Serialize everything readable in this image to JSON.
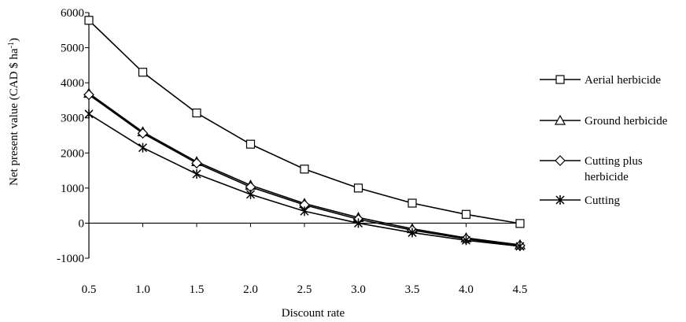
{
  "chart_data": {
    "type": "line",
    "title": "",
    "xlabel": "Discount rate",
    "ylabel": "Net present value (CAD $ ha",
    "ylabel_superscript": "-1",
    "ylabel_suffix": ")",
    "x": [
      "0.5",
      "1.0",
      "1.5",
      "2.0",
      "2.5",
      "3.0",
      "3.5",
      "4.0",
      "4.5"
    ],
    "x_values": [
      0.5,
      1.0,
      1.5,
      2.0,
      2.5,
      3.0,
      3.5,
      4.0,
      4.5
    ],
    "ylim": [
      -1000,
      6000
    ],
    "yticks": [
      "6000",
      "5000",
      "4000",
      "3000",
      "2000",
      "1000",
      "0",
      "-1000"
    ],
    "ytick_values": [
      6000,
      5000,
      4000,
      3000,
      2000,
      1000,
      0,
      -1000
    ],
    "grid": false,
    "legend_position": "right",
    "series": [
      {
        "name": "Aerial herbicide",
        "marker": "square",
        "values": [
          5780,
          4300,
          3140,
          2250,
          1540,
          1000,
          570,
          250,
          -10
        ]
      },
      {
        "name": "Ground herbicide",
        "marker": "triangle",
        "values": [
          3700,
          2600,
          1750,
          1080,
          560,
          160,
          -160,
          -420,
          -620
        ]
      },
      {
        "name": "Cutting plus herbicide",
        "legend_lines": [
          "Cutting plus",
          "herbicide"
        ],
        "marker": "diamond",
        "values": [
          3660,
          2560,
          1710,
          1030,
          520,
          110,
          -200,
          -450,
          -640
        ]
      },
      {
        "name": "Cutting",
        "marker": "asterisk",
        "values": [
          3110,
          2150,
          1400,
          820,
          340,
          0,
          -270,
          -490,
          -660
        ]
      }
    ]
  }
}
